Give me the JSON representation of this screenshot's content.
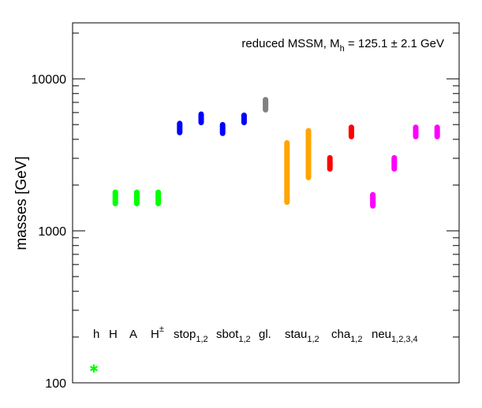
{
  "chart_data": {
    "type": "range",
    "title_main": "reduced MSSM, M",
    "title_sub": "h",
    "title_rest": " = 125.1 ± 2.1 GeV",
    "ylabel": "masses [GeV]",
    "y_scale": "log",
    "ylim": [
      100,
      20000
    ],
    "yticks": [
      {
        "value": 100,
        "label": "100"
      },
      {
        "value": 1000,
        "label": "1000"
      },
      {
        "value": 10000,
        "label": "10000"
      }
    ],
    "labels": [
      {
        "name": "h-label",
        "text": "h",
        "sub": "",
        "sup": ""
      },
      {
        "name": "H-label",
        "text": "H",
        "sub": "",
        "sup": ""
      },
      {
        "name": "A-label",
        "text": "A",
        "sub": "",
        "sup": ""
      },
      {
        "name": "Hpm-label",
        "text": "H",
        "sub": "",
        "sup": "±"
      },
      {
        "name": "stop-label",
        "text": "stop",
        "sub": "1,2",
        "sup": ""
      },
      {
        "name": "sbot-label",
        "text": "sbot",
        "sub": "1,2",
        "sup": ""
      },
      {
        "name": "gluino-label",
        "text": "gl.",
        "sub": "",
        "sup": ""
      },
      {
        "name": "stau-label",
        "text": "stau",
        "sub": "1,2",
        "sup": ""
      },
      {
        "name": "cha-label",
        "text": "cha",
        "sub": "1,2",
        "sup": ""
      },
      {
        "name": "neu-label",
        "text": "neu",
        "sub": "1,2,3,4",
        "sup": ""
      }
    ],
    "bars": [
      {
        "particle": "h",
        "x": 0,
        "min": 124,
        "max": 127,
        "color": "#00ff00"
      },
      {
        "particle": "H",
        "x": 1,
        "min": 1450,
        "max": 1870,
        "color": "#00ff00"
      },
      {
        "particle": "A",
        "x": 2,
        "min": 1450,
        "max": 1870,
        "color": "#00ff00"
      },
      {
        "particle": "H±",
        "x": 3,
        "min": 1450,
        "max": 1870,
        "color": "#00ff00"
      },
      {
        "particle": "stop1",
        "x": 4,
        "min": 4250,
        "max": 5300,
        "color": "#0000ff"
      },
      {
        "particle": "stop2",
        "x": 5,
        "min": 4950,
        "max": 6100,
        "color": "#0000ff"
      },
      {
        "particle": "sbot1",
        "x": 6,
        "min": 4200,
        "max": 5200,
        "color": "#0000ff"
      },
      {
        "particle": "sbot2",
        "x": 7,
        "min": 4950,
        "max": 6000,
        "color": "#0000ff"
      },
      {
        "particle": "gluino",
        "x": 8,
        "min": 6000,
        "max": 7600,
        "color": "#808080"
      },
      {
        "particle": "stau1",
        "x": 9,
        "min": 1480,
        "max": 3950,
        "color": "#ffa500"
      },
      {
        "particle": "stau2",
        "x": 10,
        "min": 2150,
        "max": 4750,
        "color": "#ffa500"
      },
      {
        "particle": "cha1",
        "x": 11,
        "min": 2450,
        "max": 3150,
        "color": "#ff0000"
      },
      {
        "particle": "cha2",
        "x": 12,
        "min": 4000,
        "max": 5000,
        "color": "#ff0000"
      },
      {
        "particle": "neu1",
        "x": 13,
        "min": 1400,
        "max": 1800,
        "color": "#ff00ff"
      },
      {
        "particle": "neu2",
        "x": 14,
        "min": 2450,
        "max": 3150,
        "color": "#ff00ff"
      },
      {
        "particle": "neu3",
        "x": 15,
        "min": 4000,
        "max": 5000,
        "color": "#ff00ff"
      },
      {
        "particle": "neu4",
        "x": 16,
        "min": 4000,
        "max": 5000,
        "color": "#ff00ff"
      }
    ]
  }
}
